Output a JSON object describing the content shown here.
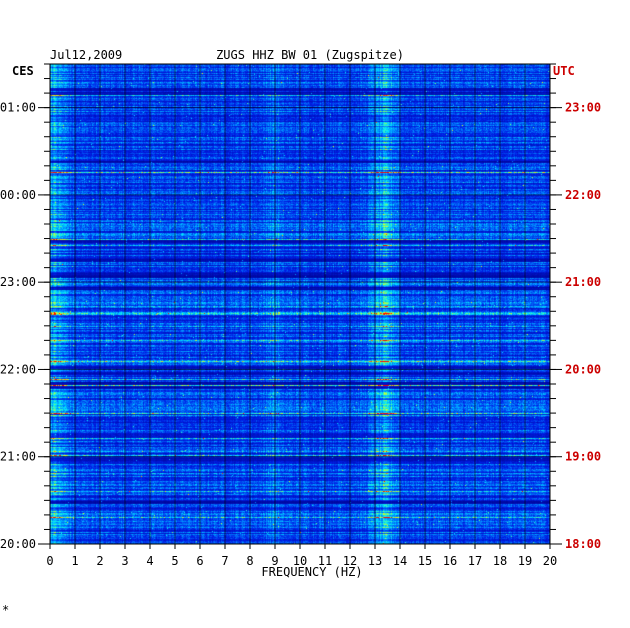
{
  "chart_data": {
    "type": "heatmap",
    "title_left": "Jul12,2009",
    "title": "ZUGS HHZ BW 01 (Zugspitze)",
    "left_zone": "CES",
    "right_zone": "UTC",
    "xlabel": "FREQUENCY (HZ)",
    "x_ticks": [
      "0",
      "1",
      "2",
      "3",
      "4",
      "5",
      "6",
      "7",
      "8",
      "9",
      "10",
      "11",
      "12",
      "13",
      "14",
      "15",
      "16",
      "17",
      "18",
      "19",
      "20"
    ],
    "xlim": [
      0,
      20
    ],
    "left_time_labels": [
      "01:00",
      "00:00",
      "23:00",
      "22:00",
      "21:00",
      "20:00"
    ],
    "right_time_labels": [
      "23:00",
      "22:00",
      "21:00",
      "20:00",
      "19:00",
      "18:00"
    ],
    "corner_mark": "*",
    "colors": {
      "low": "#0000c8",
      "mid": "#00d8ff",
      "high": "#ffff00",
      "peak": "#ff0000",
      "utc_label": "#cc0000"
    }
  }
}
